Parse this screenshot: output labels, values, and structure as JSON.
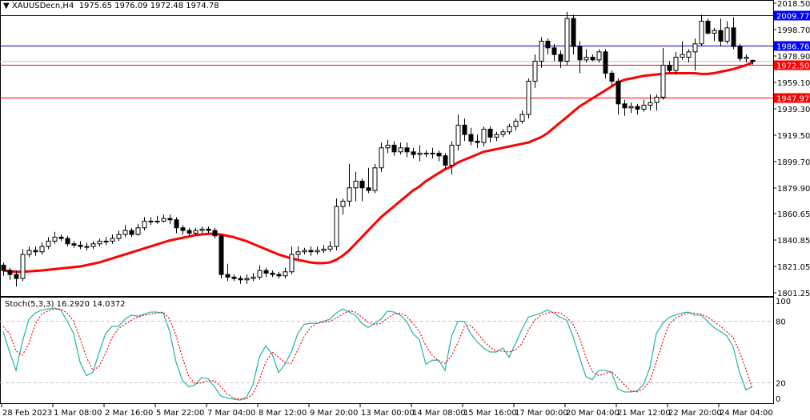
{
  "header": {
    "symbol": "XAUUSDecn,H4",
    "ohlc_text": "1975.65 1976.09 1972.48 1974.78",
    "menu_icon": "triangle-down-icon"
  },
  "stoch_header": {
    "name": "Stoch(5,3,3)",
    "main_value": "16.2920",
    "signal_value": "14.0372"
  },
  "colors": {
    "bull_body": "#ffffff",
    "bear_body": "#000000",
    "ma_line": "#ff0000",
    "resistance_line": "#0000cd",
    "support_line": "#ff0000",
    "stoch_main": "#20b2aa",
    "stoch_signal": "#ff0000",
    "bid_line": "#c0c0c0"
  },
  "chart_data": [
    {
      "type": "candlestick",
      "symbol": "XAUUSDecn",
      "timeframe": "H4",
      "ylim": [
        1801.25,
        2018.5
      ],
      "y_ticks": [
        "2018.50",
        "1998.70",
        "1978.90",
        "1959.10",
        "1939.30",
        "1919.50",
        "1899.70",
        "1879.90",
        "1860.65",
        "1840.85",
        "1821.05",
        "1801.25"
      ],
      "x_tick_labels": [
        "28 Feb 2023",
        "1 Mar 08:00",
        "2 Mar 16:00",
        "5 Mar 22:00",
        "7 Mar 04:00",
        "8 Mar 12:00",
        "9 Mar 20:00",
        "13 Mar 00:00",
        "14 Mar 08:00",
        "15 Mar 16:00",
        "17 Mar 00:00",
        "20 Mar 04:00",
        "21 Mar 12:00",
        "22 Mar 20:00",
        "24 Mar 04:00"
      ],
      "bars_per_x_tick": 8,
      "ohlc": [
        [
          1822,
          1824,
          1814,
          1818
        ],
        [
          1818,
          1820,
          1811,
          1815
        ],
        [
          1815,
          1818,
          1806,
          1812
        ],
        [
          1812,
          1834,
          1810,
          1830
        ],
        [
          1830,
          1836,
          1828,
          1833
        ],
        [
          1833,
          1836,
          1829,
          1832
        ],
        [
          1832,
          1839,
          1830,
          1836
        ],
        [
          1836,
          1843,
          1834,
          1840
        ],
        [
          1840,
          1847,
          1838,
          1843
        ],
        [
          1843,
          1845,
          1840,
          1842
        ],
        [
          1842,
          1844,
          1836,
          1838
        ],
        [
          1838,
          1840,
          1835,
          1837
        ],
        [
          1837,
          1840,
          1834,
          1836
        ],
        [
          1836,
          1839,
          1833,
          1836
        ],
        [
          1836,
          1840,
          1834,
          1838
        ],
        [
          1838,
          1842,
          1836,
          1840
        ],
        [
          1840,
          1843,
          1837,
          1840
        ],
        [
          1840,
          1845,
          1838,
          1842
        ],
        [
          1842,
          1848,
          1840,
          1845
        ],
        [
          1845,
          1852,
          1843,
          1848
        ],
        [
          1848,
          1850,
          1843,
          1845
        ],
        [
          1845,
          1853,
          1844,
          1850
        ],
        [
          1850,
          1858,
          1848,
          1855
        ],
        [
          1855,
          1858,
          1852,
          1855
        ],
        [
          1855,
          1859,
          1853,
          1855
        ],
        [
          1855,
          1860,
          1854,
          1857
        ],
        [
          1857,
          1860,
          1853,
          1856
        ],
        [
          1856,
          1858,
          1846,
          1850
        ],
        [
          1850,
          1852,
          1845,
          1848
        ],
        [
          1848,
          1850,
          1844,
          1846
        ],
        [
          1846,
          1850,
          1844,
          1848
        ],
        [
          1848,
          1851,
          1846,
          1849
        ],
        [
          1849,
          1851,
          1846,
          1848
        ],
        [
          1848,
          1850,
          1842,
          1844
        ],
        [
          1844,
          1845,
          1812,
          1815
        ],
        [
          1815,
          1823,
          1810,
          1813
        ],
        [
          1813,
          1815,
          1810,
          1812
        ],
        [
          1812,
          1814,
          1808,
          1811
        ],
        [
          1811,
          1815,
          1808,
          1812
        ],
        [
          1812,
          1816,
          1810,
          1813
        ],
        [
          1813,
          1822,
          1811,
          1818
        ],
        [
          1818,
          1820,
          1813,
          1816
        ],
        [
          1816,
          1818,
          1813,
          1815
        ],
        [
          1815,
          1817,
          1812,
          1814
        ],
        [
          1814,
          1820,
          1812,
          1817
        ],
        [
          1817,
          1836,
          1815,
          1830
        ],
        [
          1830,
          1836,
          1827,
          1832
        ],
        [
          1832,
          1835,
          1830,
          1833
        ],
        [
          1833,
          1836,
          1829,
          1832
        ],
        [
          1832,
          1836,
          1830,
          1833
        ],
        [
          1833,
          1837,
          1831,
          1834
        ],
        [
          1834,
          1840,
          1832,
          1836
        ],
        [
          1836,
          1872,
          1833,
          1866
        ],
        [
          1866,
          1872,
          1860,
          1870
        ],
        [
          1870,
          1898,
          1866,
          1880
        ],
        [
          1880,
          1892,
          1870,
          1885
        ],
        [
          1885,
          1887,
          1870,
          1880
        ],
        [
          1880,
          1895,
          1876,
          1878
        ],
        [
          1878,
          1898,
          1876,
          1895
        ],
        [
          1895,
          1914,
          1892,
          1910
        ],
        [
          1910,
          1916,
          1906,
          1912
        ],
        [
          1912,
          1915,
          1904,
          1907
        ],
        [
          1907,
          1914,
          1905,
          1910
        ],
        [
          1910,
          1914,
          1903,
          1907
        ],
        [
          1907,
          1910,
          1902,
          1905
        ],
        [
          1905,
          1912,
          1900,
          1906
        ],
        [
          1906,
          1908,
          1903,
          1906
        ],
        [
          1906,
          1910,
          1902,
          1906
        ],
        [
          1906,
          1908,
          1900,
          1904
        ],
        [
          1904,
          1906,
          1894,
          1897
        ],
        [
          1897,
          1915,
          1890,
          1912
        ],
        [
          1912,
          1935,
          1908,
          1927
        ],
        [
          1927,
          1932,
          1915,
          1920
        ],
        [
          1920,
          1925,
          1912,
          1915
        ],
        [
          1915,
          1920,
          1910,
          1914
        ],
        [
          1914,
          1926,
          1911,
          1924
        ],
        [
          1924,
          1926,
          1914,
          1918
        ],
        [
          1918,
          1922,
          1915,
          1920
        ],
        [
          1920,
          1924,
          1918,
          1922
        ],
        [
          1922,
          1928,
          1920,
          1926
        ],
        [
          1926,
          1932,
          1923,
          1930
        ],
        [
          1930,
          1938,
          1928,
          1935
        ],
        [
          1935,
          1962,
          1932,
          1960
        ],
        [
          1960,
          1980,
          1955,
          1975
        ],
        [
          1975,
          1993,
          1970,
          1990
        ],
        [
          1990,
          1992,
          1980,
          1985
        ],
        [
          1985,
          1988,
          1975,
          1980
        ],
        [
          1980,
          1983,
          1970,
          1975
        ],
        [
          1975,
          2012,
          1972,
          2007
        ],
        [
          2007,
          2010,
          1980,
          1986
        ],
        [
          1986,
          1990,
          1966,
          1976
        ],
        [
          1976,
          1984,
          1974,
          1978
        ],
        [
          1978,
          1980,
          1975,
          1976
        ],
        [
          1976,
          1984,
          1974,
          1982
        ],
        [
          1982,
          1984,
          1962,
          1966
        ],
        [
          1966,
          1968,
          1956,
          1960
        ],
        [
          1960,
          1962,
          1935,
          1943
        ],
        [
          1943,
          1946,
          1934,
          1940
        ],
        [
          1940,
          1944,
          1936,
          1941
        ],
        [
          1941,
          1943,
          1935,
          1939
        ],
        [
          1939,
          1946,
          1937,
          1942
        ],
        [
          1942,
          1950,
          1938,
          1944
        ],
        [
          1944,
          1950,
          1938,
          1948
        ],
        [
          1948,
          1985,
          1946,
          1972
        ],
        [
          1972,
          1975,
          1966,
          1968
        ],
        [
          1968,
          1982,
          1965,
          1978
        ],
        [
          1978,
          1990,
          1976,
          1980
        ],
        [
          1978,
          1984,
          1974,
          1982
        ],
        [
          1982,
          1992,
          1968,
          1988
        ],
        [
          1988,
          2010,
          1986,
          2005
        ],
        [
          2005,
          2007,
          1995,
          1996
        ],
        [
          1996,
          2000,
          1990,
          1998
        ],
        [
          1998,
          2007,
          1986,
          1990
        ],
        [
          1990,
          2005,
          1988,
          2000
        ],
        [
          2000,
          2008,
          1984,
          1986
        ],
        [
          1986,
          1988,
          1975,
          1977
        ],
        [
          1977,
          1980,
          1974,
          1978
        ],
        [
          1975.65,
          1976.09,
          1972.48,
          1974.78
        ]
      ],
      "moving_average": [
        1818,
        1817.5,
        1817,
        1817,
        1817.3,
        1817.7,
        1818,
        1818.5,
        1819,
        1819.5,
        1820,
        1820.5,
        1821,
        1822,
        1823,
        1824,
        1825.5,
        1827,
        1828.5,
        1830,
        1831.5,
        1833,
        1834.5,
        1836,
        1837.5,
        1839,
        1840.5,
        1841.5,
        1842.5,
        1843.5,
        1844.5,
        1845,
        1845.5,
        1845.5,
        1845,
        1844,
        1843,
        1841.5,
        1840,
        1838,
        1836,
        1834,
        1832,
        1830,
        1828.5,
        1827,
        1826,
        1825,
        1824,
        1823.5,
        1823.5,
        1824,
        1826,
        1829,
        1833,
        1838,
        1843,
        1848,
        1853,
        1858,
        1862,
        1866,
        1870,
        1874,
        1878,
        1881,
        1885,
        1888,
        1891,
        1894,
        1896,
        1899,
        1901,
        1903,
        1905,
        1907,
        1908,
        1909,
        1910,
        1911,
        1912,
        1913,
        1914,
        1916,
        1918,
        1921,
        1925,
        1929,
        1933,
        1937,
        1941,
        1944,
        1947,
        1950,
        1953,
        1956,
        1959,
        1961,
        1962,
        1963,
        1964,
        1964.5,
        1965,
        1965.5,
        1966,
        1966,
        1966,
        1966,
        1966,
        1965.5,
        1965.5,
        1966,
        1967,
        1968,
        1969,
        1970.5,
        1972,
        1974
      ],
      "levels": [
        {
          "price": "2009.77",
          "kind": "resistance"
        },
        {
          "price": "1986.76",
          "kind": "resistance"
        },
        {
          "price": "1972.50",
          "kind": "support"
        },
        {
          "price": "1947.97",
          "kind": "support"
        }
      ],
      "bid": 1974.78
    },
    {
      "type": "line",
      "name": "Stoch(5,3,3)",
      "ylim": [
        0,
        100
      ],
      "y_ticks": [
        "100",
        "80",
        "20",
        "0"
      ],
      "levels": [
        80,
        20
      ],
      "series": [
        {
          "name": "main",
          "values": [
            70,
            50,
            32,
            60,
            82,
            88,
            91,
            92,
            93,
            91,
            80,
            68,
            40,
            27,
            30,
            50,
            68,
            75,
            75,
            82,
            86,
            85,
            87,
            89,
            89,
            88,
            70,
            40,
            22,
            16,
            18,
            25,
            24,
            16,
            7,
            5,
            4,
            3,
            6,
            18,
            45,
            56,
            48,
            30,
            38,
            50,
            68,
            77,
            78,
            78,
            80,
            82,
            88,
            92,
            89,
            86,
            78,
            74,
            78,
            82,
            90,
            89,
            86,
            80,
            68,
            62,
            38,
            42,
            42,
            32,
            65,
            80,
            80,
            68,
            60,
            54,
            50,
            50,
            54,
            45,
            58,
            72,
            84,
            86,
            88,
            91,
            88,
            84,
            81,
            65,
            45,
            26,
            23,
            32,
            32,
            30,
            14,
            11,
            11,
            12,
            18,
            35,
            68,
            78,
            84,
            86,
            88,
            89,
            86,
            86,
            80,
            74,
            70,
            66,
            55,
            30,
            13,
            16.292
          ]
        },
        {
          "name": "signal",
          "values": [
            75,
            68,
            51,
            47,
            58,
            77,
            87,
            90,
            92,
            92,
            88,
            80,
            63,
            45,
            32,
            36,
            49,
            64,
            73,
            77,
            81,
            84,
            86,
            87,
            88,
            89,
            82,
            66,
            44,
            26,
            19,
            20,
            22,
            22,
            16,
            9,
            5,
            4,
            4,
            9,
            23,
            40,
            50,
            45,
            39,
            39,
            52,
            65,
            74,
            78,
            79,
            80,
            83,
            87,
            90,
            89,
            84,
            79,
            77,
            78,
            83,
            87,
            88,
            85,
            78,
            70,
            56,
            47,
            41,
            39,
            46,
            59,
            75,
            76,
            69,
            61,
            55,
            51,
            51,
            50,
            52,
            58,
            71,
            81,
            86,
            88,
            89,
            88,
            84,
            77,
            64,
            45,
            31,
            27,
            29,
            31,
            25,
            18,
            12,
            11,
            14,
            22,
            40,
            60,
            77,
            83,
            86,
            88,
            88,
            87,
            84,
            80,
            75,
            70,
            64,
            50,
            33,
            14.0372
          ]
        }
      ]
    }
  ]
}
